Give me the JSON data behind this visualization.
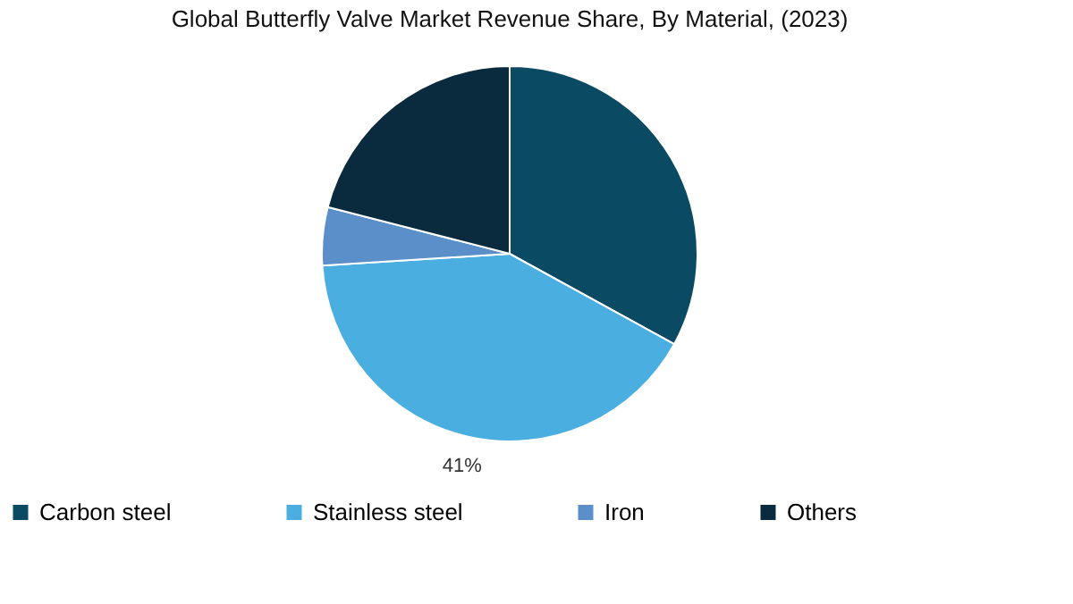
{
  "chart_data": {
    "type": "pie",
    "title": "Global Butterfly Valve Market Revenue Share, By Material, (2023)",
    "categories": [
      "Carbon steel",
      "Stainless steel",
      "Iron",
      "Others"
    ],
    "values": [
      33,
      41,
      5,
      21
    ],
    "colors": [
      "#0b4a63",
      "#4aaee0",
      "#5b8fc9",
      "#0a2a3d"
    ],
    "value_labels": [
      null,
      "41%",
      null,
      null
    ],
    "legend": "bottom"
  }
}
